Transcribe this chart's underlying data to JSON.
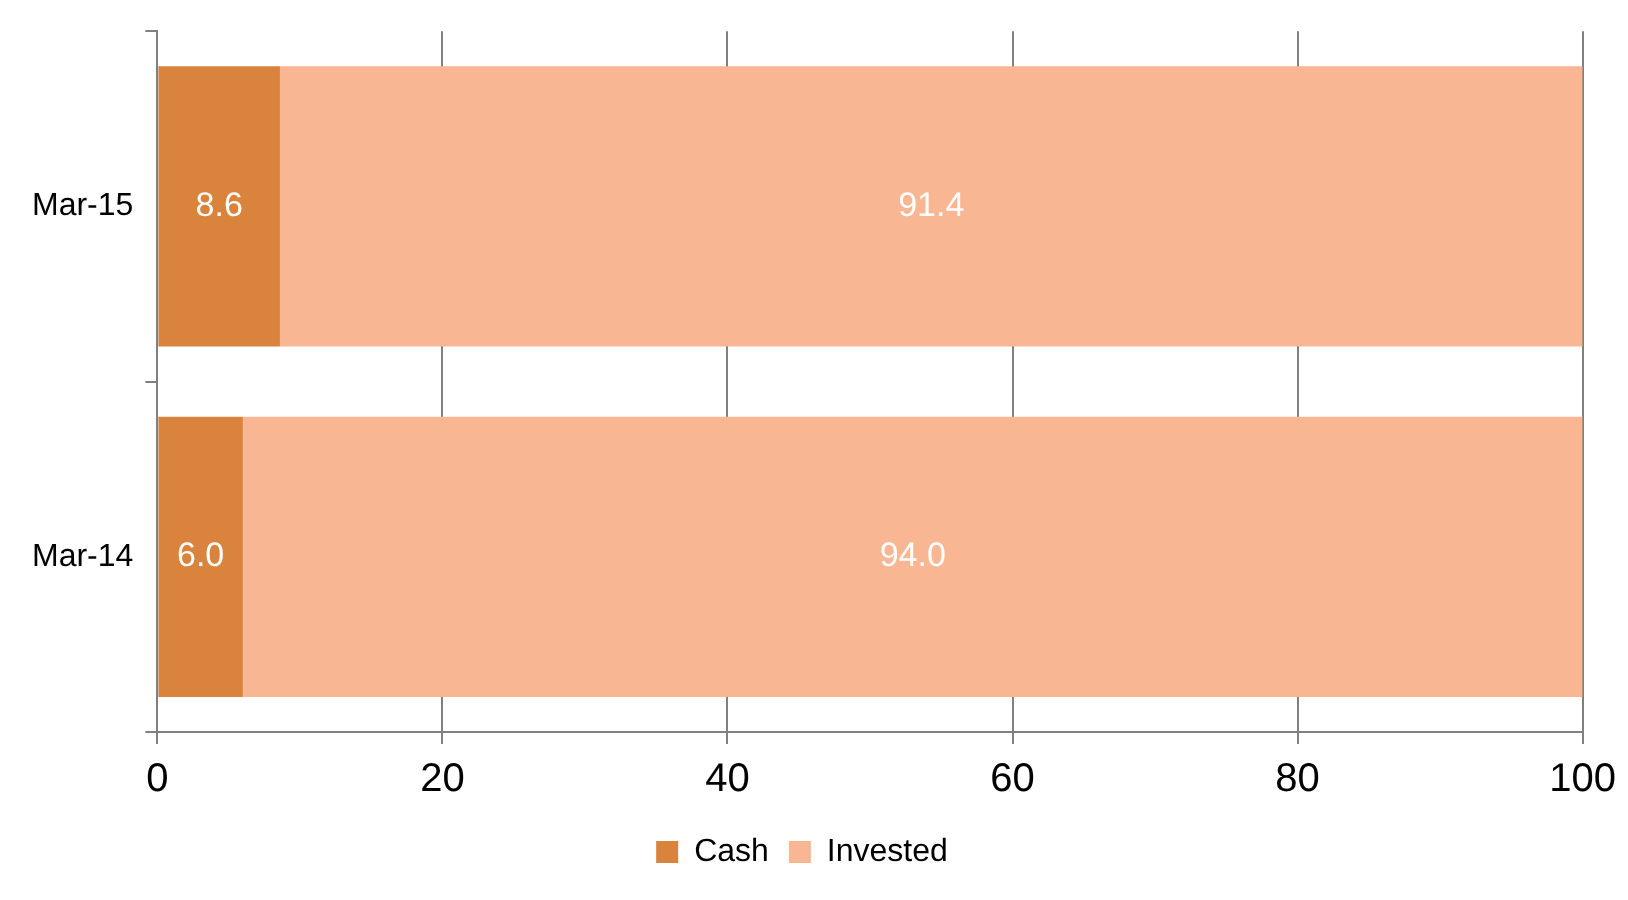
{
  "chart_data": {
    "type": "bar",
    "orientation": "horizontal",
    "stacked": true,
    "categories": [
      "Mar-15",
      "Mar-14"
    ],
    "series": [
      {
        "name": "Cash",
        "color": "#d9833c",
        "values": [
          8.6,
          6.0
        ],
        "value_labels": [
          "8.6",
          "6.0"
        ]
      },
      {
        "name": "Invested",
        "color": "#f8b692",
        "values": [
          91.4,
          94.0
        ],
        "value_labels": [
          "91.4",
          "94.0"
        ]
      }
    ],
    "xlim": [
      0,
      100
    ],
    "xticks": [
      0,
      20,
      40,
      60,
      80,
      100
    ],
    "grid": "x",
    "legend": "bottom"
  }
}
